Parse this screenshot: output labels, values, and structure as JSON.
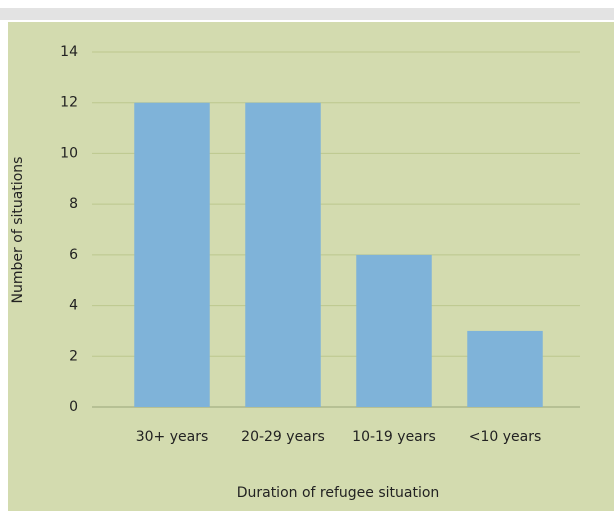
{
  "chart_data": {
    "type": "bar",
    "categories": [
      "30+ years",
      "20-29 years",
      "10-19 years",
      "<10 years"
    ],
    "values": [
      12,
      12,
      6,
      3
    ],
    "color": "#7fb3d9",
    "xlabel": "Duration of refugee situation",
    "ylabel": "Number of situations",
    "ylim": [
      0,
      14
    ],
    "yticks": [
      0,
      2,
      4,
      6,
      8,
      10,
      12,
      14
    ],
    "grid": true
  }
}
